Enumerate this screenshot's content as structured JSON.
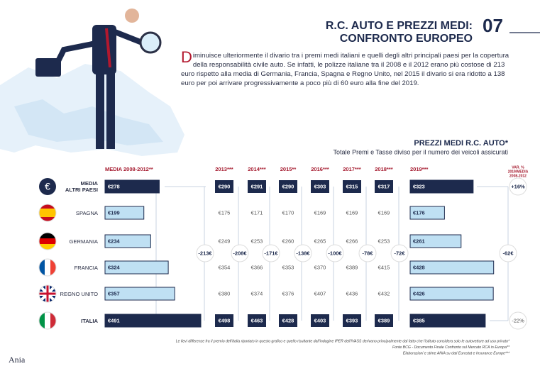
{
  "header": {
    "title_lines": [
      "R.C. AUTO E PREZZI MEDI:",
      "CONFRONTO EUROPEO"
    ],
    "number": "07"
  },
  "intro": "Diminuisce ulteriormente il divario tra i premi medi italiani e quelli degli altri principali paesi per la copertura della responsabilità civile auto. Se infatti, le polizze italiane tra il 2008 e il 2012 erano più costose di 213 euro rispetto alla media di Germania, Francia, Spagna e Regno Unito, nel 2015 il divario si era ridotto a 138 euro per poi arrivare progressivamente a poco più di 60 euro alla fine del 2019.",
  "table": {
    "title": "PREZZI MEDI R.C. AUTO*",
    "subtitle": "Totale Premi e Tasse diviso per il numero dei veicoli assicurati",
    "columns": [
      "MEDIA 2008-2012**",
      "2013***",
      "2014***",
      "2015**",
      "2016***",
      "2017***",
      "2018***",
      "2019***"
    ],
    "var_header_lines": [
      "VAR. %",
      "2019/MEDIA",
      "2008-2012"
    ],
    "rows": [
      {
        "country": [
          "MEDIA",
          "ALTRI PAESI"
        ],
        "values": [
          278,
          290,
          291,
          290,
          303,
          315,
          317,
          323
        ],
        "value_labels": [
          "€278",
          "€290",
          "€291",
          "€290",
          "€303",
          "€315",
          "€317",
          "€323"
        ],
        "var": "+16%"
      },
      {
        "country": [
          "SPAGNA"
        ],
        "values": [
          199,
          175,
          171,
          170,
          169,
          169,
          169,
          176
        ],
        "value_labels": [
          "€199",
          "€175",
          "€171",
          "€170",
          "€169",
          "€169",
          "€169",
          "€176"
        ]
      },
      {
        "country": [
          "GERMANIA"
        ],
        "values": [
          234,
          249,
          253,
          260,
          265,
          266,
          253,
          261
        ],
        "value_labels": [
          "€234",
          "€249",
          "€253",
          "€260",
          "€265",
          "€266",
          "€253",
          "€261"
        ]
      },
      {
        "country": [
          "FRANCIA"
        ],
        "values": [
          324,
          354,
          366,
          353,
          370,
          389,
          415,
          428
        ],
        "value_labels": [
          "€324",
          "€354",
          "€366",
          "€353",
          "€370",
          "€389",
          "€415",
          "€428"
        ]
      },
      {
        "country": [
          "REGNO UNITO"
        ],
        "values": [
          357,
          380,
          374,
          376,
          407,
          436,
          432,
          426
        ],
        "value_labels": [
          "€357",
          "€380",
          "€374",
          "€376",
          "€407",
          "€436",
          "€432",
          "€426"
        ]
      },
      {
        "country": [
          "ITALIA"
        ],
        "values": [
          491,
          498,
          463,
          428,
          403,
          393,
          389,
          385
        ],
        "value_labels": [
          "€491",
          "€498",
          "€463",
          "€428",
          "€403",
          "€393",
          "€389",
          "€385"
        ],
        "var": "-22%"
      }
    ],
    "differences": [
      "-213€",
      "-208€",
      "-171€",
      "-138€",
      "-100€",
      "-78€",
      "-72€"
    ],
    "var_difference": "-62€"
  },
  "notes": [
    "Le lievi differenze fra il premio dell'Italia riportato in questo grafico e quello risultante dall'indagine IPER dell'IVASS derivano principalmente dal fatto che l'istituto considera solo le autovetture ad uso privato*",
    "Fonte BCG - Documento Finale Confronto sul Mercato RCA in Europa**",
    "Elaborazioni e stime ANIA su dati Eurostat e Insurance Europe***"
  ],
  "logo": "Ania"
}
